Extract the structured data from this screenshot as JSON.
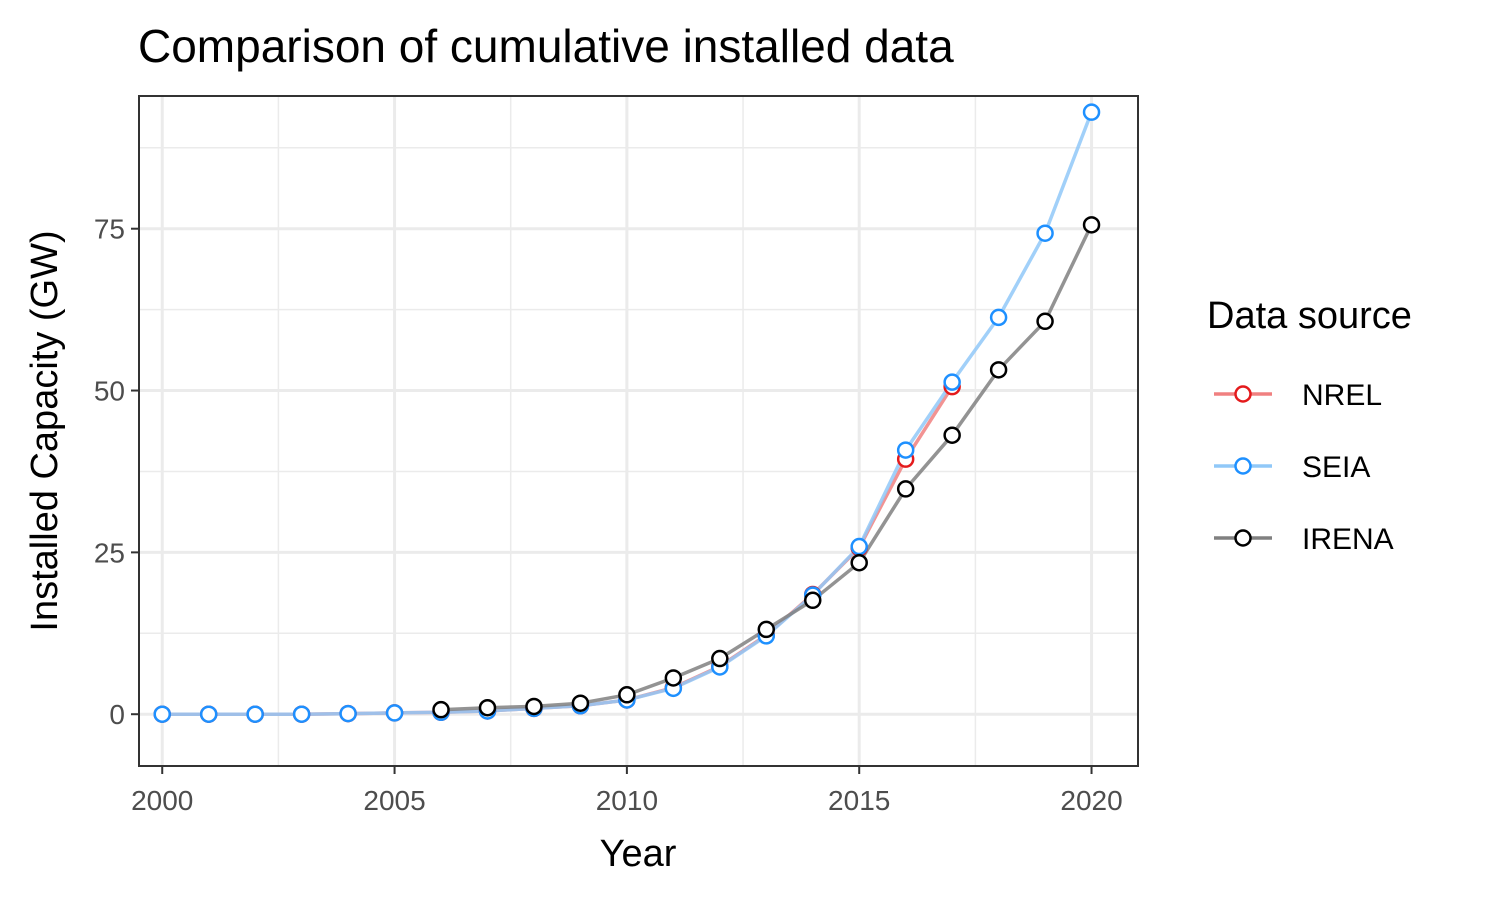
{
  "chart_data": {
    "type": "line",
    "title": "Comparison of cumulative installed data",
    "xlabel": "Year",
    "ylabel": "Installed Capacity (GW)",
    "xlim": [
      1999.5,
      2021.0
    ],
    "ylim": [
      -8.0,
      95.5
    ],
    "x_ticks": [
      2000,
      2005,
      2010,
      2015,
      2020
    ],
    "y_ticks": [
      0,
      25,
      50,
      75
    ],
    "grid": true,
    "legend": {
      "title": "Data source",
      "position": "right"
    },
    "series": [
      {
        "name": "NREL",
        "line_color": "#f08080",
        "point_color": "#e41a1c",
        "x": [
          2000,
          2001,
          2002,
          2003,
          2004,
          2005,
          2006,
          2007,
          2008,
          2009,
          2010,
          2011,
          2012,
          2013,
          2014,
          2015,
          2016,
          2017
        ],
        "y": [
          0.0,
          0.0,
          0.0,
          0.0,
          0.1,
          0.2,
          0.3,
          0.5,
          0.9,
          1.3,
          2.2,
          4.1,
          7.4,
          12.2,
          18.5,
          25.7,
          39.4,
          50.6
        ]
      },
      {
        "name": "SEIA",
        "line_color": "#90c8f8",
        "point_color": "#1e90ff",
        "x": [
          2000,
          2001,
          2002,
          2003,
          2004,
          2005,
          2006,
          2007,
          2008,
          2009,
          2010,
          2011,
          2012,
          2013,
          2014,
          2015,
          2016,
          2017,
          2018,
          2019,
          2020
        ],
        "y": [
          0.0,
          0.0,
          0.0,
          0.0,
          0.1,
          0.2,
          0.3,
          0.5,
          0.9,
          1.3,
          2.2,
          4.0,
          7.3,
          12.1,
          18.4,
          25.9,
          40.8,
          51.3,
          61.3,
          74.3,
          93.0
        ]
      },
      {
        "name": "IRENA",
        "line_color": "#808080",
        "point_color": "#000000",
        "x": [
          2006,
          2007,
          2008,
          2009,
          2010,
          2011,
          2012,
          2013,
          2014,
          2015,
          2016,
          2017,
          2018,
          2019,
          2020
        ],
        "y": [
          0.7,
          1.0,
          1.2,
          1.7,
          3.0,
          5.6,
          8.6,
          13.1,
          17.6,
          23.4,
          34.8,
          43.1,
          53.2,
          60.7,
          75.6
        ]
      }
    ]
  }
}
